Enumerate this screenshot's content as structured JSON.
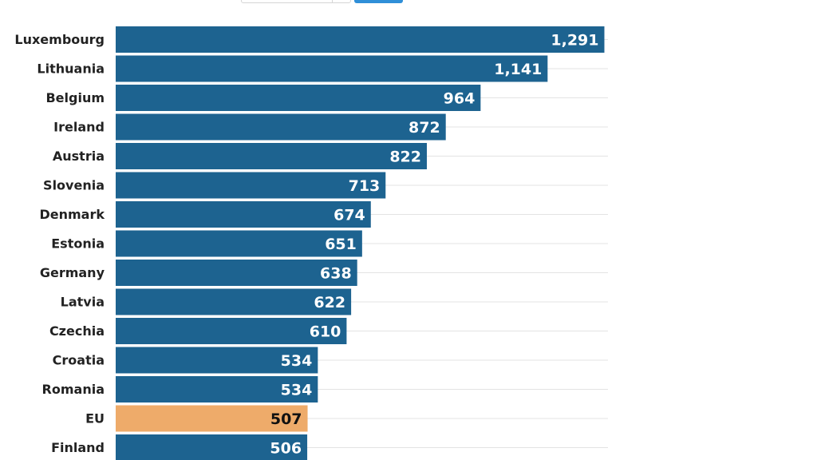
{
  "chart_data": {
    "type": "bar",
    "orientation": "horizontal",
    "categories": [
      "Luxembourg",
      "Lithuania",
      "Belgium",
      "Ireland",
      "Austria",
      "Slovenia",
      "Denmark",
      "Estonia",
      "Germany",
      "Latvia",
      "Czechia",
      "Croatia",
      "Romania",
      "EU",
      "Finland"
    ],
    "values": [
      1291,
      1141,
      964,
      872,
      822,
      713,
      674,
      651,
      638,
      622,
      610,
      534,
      534,
      507,
      506
    ],
    "value_labels": [
      "1,291",
      "1,141",
      "964",
      "872",
      "822",
      "713",
      "674",
      "651",
      "638",
      "622",
      "610",
      "534",
      "534",
      "507",
      "506"
    ],
    "highlight_category": "EU",
    "xlim": [
      0,
      1291
    ],
    "grid": true,
    "colors": {
      "bar": "#1d6390",
      "highlight": "#eeab6a",
      "value_text": "#ffffff",
      "highlight_value_text": "#111111",
      "grid": "#e3e3e3"
    }
  }
}
